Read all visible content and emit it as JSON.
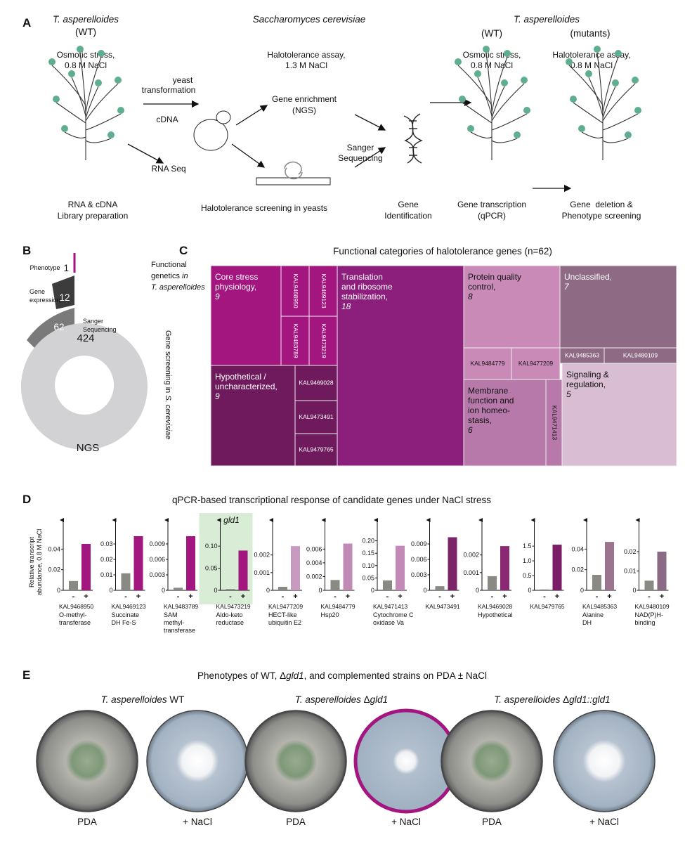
{
  "panel_A": {
    "letter": "A",
    "org1": "T. asperelloides",
    "org1_sub": "(WT)",
    "org2": "Saccharomyces cerevisiae",
    "org3": "T. asperelloides",
    "org3_wt": "(WT)",
    "org3_mut": "(mutants)",
    "stress1": [
      "Osmotic stress,",
      "0.8 M NaCl"
    ],
    "assay1": [
      "Halotolerance assay,",
      "1.3 M NaCl"
    ],
    "stress2": [
      "Osmotic stress,",
      "0.8 M NaCl"
    ],
    "assay2": [
      "Halotolerance assay,",
      "0.8 M NaCl"
    ],
    "yeast_tr": [
      "yeast",
      "transformation"
    ],
    "cdna": "cDNA",
    "rnaseq": "RNA Seq",
    "enrich": [
      "Gene enrichment",
      "(NGS)"
    ],
    "sanger": [
      "Sanger",
      "Sequencing"
    ],
    "step1": [
      "RNA & cDNA",
      "Library preparation"
    ],
    "step2": "Halotolerance screening in yeasts",
    "step3": [
      "Gene",
      "Identification"
    ],
    "step4": [
      "Gene transcription",
      "(qPCR)"
    ],
    "step5": [
      "Gene  deletion &",
      "Phenotype screening"
    ]
  },
  "panel_B": {
    "letter": "B",
    "levels": [
      {
        "label": [
          "Phenotype"
        ],
        "count": "1"
      },
      {
        "label": [
          "Gene",
          "expression"
        ],
        "count": "12"
      },
      {
        "label": [
          "Sanger",
          "Sequencing"
        ],
        "count": "62"
      },
      {
        "label": [
          "NGS"
        ],
        "count": "424"
      }
    ],
    "group1": [
      "Functional",
      "genetics ",
      "in",
      "T. asperelloides"
    ],
    "group2": [
      "Gene screening in ",
      "S. cerevisiae"
    ]
  },
  "panel_C": {
    "letter": "C",
    "title": "Functional categories of halotolerance genes (n=62)",
    "tiles": [
      {
        "label": [
          "Core stress",
          "physiology,"
        ],
        "count": "9",
        "color": "#a3157f",
        "genes": [
          "KAL9468950",
          "KAL9469123",
          "KAL9483789",
          "KAL9473219"
        ]
      },
      {
        "label": [
          "Hypothetical /",
          "uncharacterized,"
        ],
        "count": "9",
        "color": "#6e1a5d",
        "genes": [
          "KAL9469028",
          "KAL9473491",
          "KAL9479765"
        ]
      },
      {
        "label": [
          "Translation",
          "and ribosome",
          "stabilization,"
        ],
        "count": "18",
        "color": "#8c1f7b",
        "genes": []
      },
      {
        "label": [
          "Protein quality",
          "control,"
        ],
        "count": "8",
        "color": "#c98ab8",
        "genes": [
          "KAL9484779",
          "KAL9477209"
        ]
      },
      {
        "label": [
          "Unclassified,"
        ],
        "count": "7",
        "color": "#8e6a85",
        "genes": [
          "KAL9485363",
          "KAL9480109"
        ]
      },
      {
        "label": [
          "Membrane",
          "function and",
          "ion homeo-",
          "stasis,"
        ],
        "count": "6",
        "color": "#b778aa",
        "genes": [
          "KAL9471413"
        ]
      },
      {
        "label": [
          "Signaling &",
          "regulation,"
        ],
        "count": "5",
        "color": "#d8bdd3",
        "genes": []
      }
    ]
  },
  "panel_D": {
    "letter": "D",
    "title": "qPCR-based transcriptional response of candidate genes under NaCl stress",
    "ylabel": [
      "Relative transcript",
      "abundance, 0.8 M NaCl"
    ]
  },
  "chart_data": [
    {
      "type": "bar",
      "gene": "KAL9468950",
      "description": [
        "O-methyl-",
        "transferase"
      ],
      "categories": [
        "-",
        "+"
      ],
      "values": [
        0.009,
        0.045
      ],
      "colors": [
        "#8a8a84",
        "#a3157f"
      ],
      "ylim": [
        0,
        0.06
      ],
      "yticks": [
        0,
        0.02,
        0.04
      ]
    },
    {
      "type": "bar",
      "gene": "KAL9469123",
      "description": [
        "Succinate",
        "DH Fe-S"
      ],
      "categories": [
        "-",
        "+"
      ],
      "values": [
        0.011,
        0.035
      ],
      "colors": [
        "#8a8a84",
        "#a3157f"
      ],
      "ylim": [
        0,
        0.04
      ],
      "yticks": [
        0,
        0.01,
        0.02,
        0.03
      ]
    },
    {
      "type": "bar",
      "gene": "KAL9483789",
      "description": [
        "SAM",
        "methyl-",
        "transferase"
      ],
      "categories": [
        "-",
        "+"
      ],
      "values": [
        0.0005,
        0.0105
      ],
      "colors": [
        "#8a8a84",
        "#a3157f"
      ],
      "ylim": [
        0,
        0.012
      ],
      "yticks": [
        0,
        0.003,
        0.006,
        0.009
      ]
    },
    {
      "type": "bar",
      "gene": "KAL9473219",
      "description": [
        "Aldo-keto",
        "reductase"
      ],
      "highlight": "gld1",
      "categories": [
        "-",
        "+"
      ],
      "values": [
        0.003,
        0.09
      ],
      "colors": [
        "#8a8a84",
        "#a3157f"
      ],
      "ylim": [
        0,
        0.14
      ],
      "yticks": [
        0,
        0.05,
        {
          "value": 0.1,
          "label": "0.10"
        }
      ]
    },
    {
      "type": "bar",
      "gene": "KAL9477209",
      "description": [
        "HECT-like",
        "ubiquitin E2"
      ],
      "categories": [
        "-",
        "+"
      ],
      "values": [
        0.0002,
        0.0025
      ],
      "colors": [
        "#8a8a84",
        "#c99ac0"
      ],
      "ylim": [
        0,
        0.0035
      ],
      "yticks": [
        0,
        0.001,
        0.002
      ]
    },
    {
      "type": "bar",
      "gene": "KAL9484779",
      "description": [
        "Hsp20"
      ],
      "categories": [
        "-",
        "+"
      ],
      "values": [
        0.0015,
        0.0068
      ],
      "colors": [
        "#8a8a84",
        "#c08ab4"
      ],
      "ylim": [
        0,
        0.009
      ],
      "yticks": [
        0,
        0.002,
        0.004,
        0.006
      ]
    },
    {
      "type": "bar",
      "gene": "KAL9471413",
      "description": [
        "Cytochrome C",
        "oxidase Va"
      ],
      "categories": [
        "-",
        "+"
      ],
      "values": [
        0.04,
        0.18
      ],
      "colors": [
        "#8a8a84",
        "#c48ab7"
      ],
      "ylim": [
        0,
        0.25
      ],
      "yticks": [
        0,
        0.05,
        {
          "value": 0.1,
          "label": "0.10"
        },
        0.15,
        {
          "value": 0.2,
          "label": "0.20"
        }
      ]
    },
    {
      "type": "bar",
      "gene": "KAL9473491",
      "description": [],
      "categories": [
        "-",
        "+"
      ],
      "values": [
        0.0008,
        0.0103
      ],
      "colors": [
        "#8a8a84",
        "#7c2468"
      ],
      "ylim": [
        0,
        0.012
      ],
      "yticks": [
        0,
        0.003,
        0.006,
        0.009
      ]
    },
    {
      "type": "bar",
      "gene": "KAL9469028",
      "description": [
        "Hypothetical"
      ],
      "categories": [
        "-",
        "+"
      ],
      "values": [
        0.0008,
        0.0025
      ],
      "colors": [
        "#8a8a84",
        "#8a2873"
      ],
      "ylim": [
        0,
        0.0035
      ],
      "yticks": [
        0,
        0.001,
        0.002
      ]
    },
    {
      "type": "bar",
      "gene": "KAL9479765",
      "description": [],
      "categories": [
        "-",
        "+"
      ],
      "values": [
        0.03,
        1.55
      ],
      "colors": [
        "#8a8a84",
        "#7a1c66"
      ],
      "ylim": [
        0,
        2.1
      ],
      "yticks": [
        0,
        0.5,
        {
          "value": 1,
          "label": "1.0"
        },
        1.5
      ]
    },
    {
      "type": "bar",
      "gene": "KAL9485363",
      "description": [
        "Alanine",
        "DH"
      ],
      "categories": [
        "-",
        "+"
      ],
      "values": [
        0.015,
        0.047
      ],
      "colors": [
        "#8a8a84",
        "#9b7590"
      ],
      "ylim": [
        0,
        0.06
      ],
      "yticks": [
        0,
        0.02,
        0.04
      ]
    },
    {
      "type": "bar",
      "gene": "KAL9480109",
      "description": [
        "NAD(P)H-",
        "binding"
      ],
      "categories": [
        "-",
        "+"
      ],
      "values": [
        0.005,
        0.02
      ],
      "colors": [
        "#8a8a84",
        "#8a6a85"
      ],
      "ylim": [
        0,
        0.032
      ],
      "yticks": [
        0,
        0.01,
        0.02
      ]
    }
  ],
  "panel_E": {
    "letter": "E",
    "title": [
      "Phenotypes of WT, Δ",
      "gld1",
      ", and complemented strains on PDA ± NaCl"
    ],
    "strains": [
      [
        "T. asperelloides",
        " WT"
      ],
      [
        "T. asperelloides",
        " Δ",
        "gld1"
      ],
      [
        "T. asperelloides",
        " Δ",
        "gld1::gld1"
      ]
    ],
    "media": [
      "PDA",
      "+ NaCl",
      "PDA",
      "+ NaCl",
      "PDA",
      "+ NaCl"
    ]
  }
}
